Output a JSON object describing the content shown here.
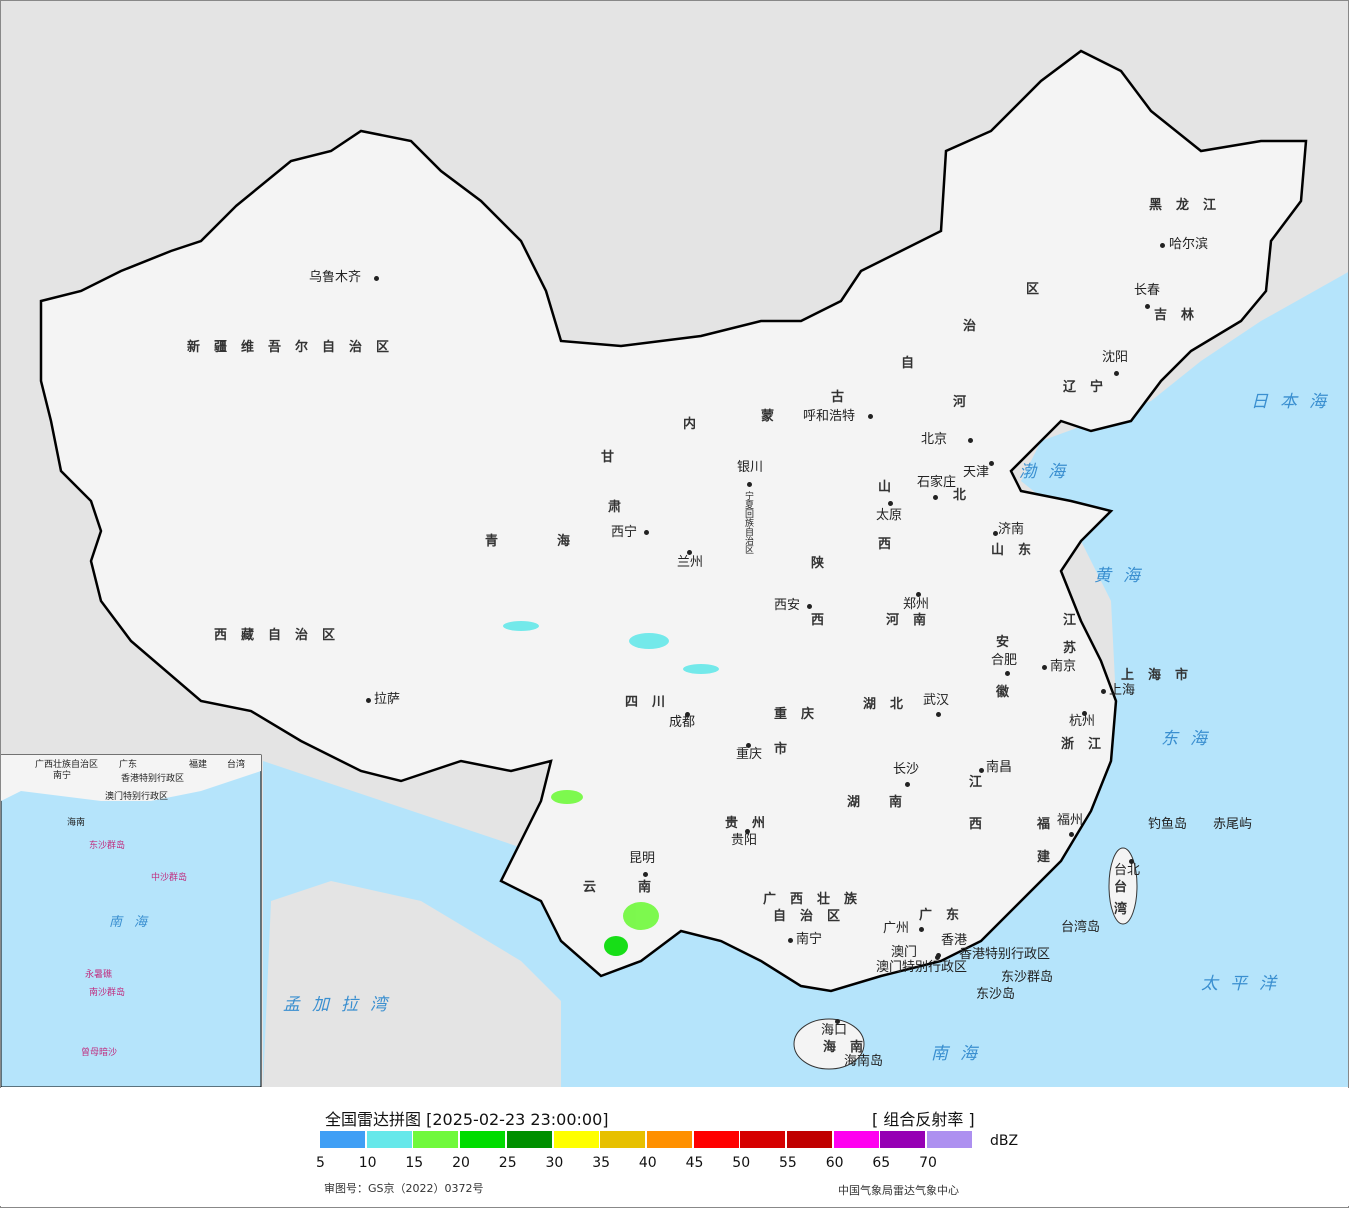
{
  "legend": {
    "title": "全国雷达拼图 [2025-02-23 23:00:00]",
    "product": "[ 组合反射率 ]",
    "unit": "dBZ",
    "ticks": [
      "5",
      "10",
      "15",
      "20",
      "25",
      "30",
      "35",
      "40",
      "45",
      "50",
      "55",
      "60",
      "65",
      "70"
    ],
    "colors": [
      "#409ff5",
      "#66e8ea",
      "#70f93c",
      "#00dc00",
      "#008f00",
      "#ffff00",
      "#e7c000",
      "#ff9000",
      "#ff0000",
      "#d60000",
      "#c00000",
      "#ff00f0",
      "#9600b4",
      "#ad90f0"
    ],
    "approval": "审图号：GS京（2022）0372号",
    "source": "中国气象局雷达气象中心"
  },
  "map": {
    "colors": {
      "land": "#f4f4f4",
      "sea": "#b5e4fb",
      "outside": "#e4e4e4",
      "border": "#000000"
    },
    "cities": [
      "乌鲁木齐",
      "拉萨",
      "西宁",
      "兰州",
      "银川",
      "呼和浩特",
      "北京",
      "天津",
      "石家庄",
      "太原",
      "济南",
      "郑州",
      "西安",
      "合肥",
      "南京",
      "上海",
      "杭州",
      "武汉",
      "成都",
      "重庆",
      "长沙",
      "南昌",
      "贵阳",
      "昆明",
      "南宁",
      "广州",
      "福州",
      "台北",
      "哈尔滨",
      "长春",
      "沈阳",
      "海口",
      "香港",
      "澳门"
    ],
    "regions": [
      "新疆维吾尔自治区",
      "西藏自治区",
      "青",
      "海",
      "甘",
      "肃",
      "内",
      "蒙",
      "古",
      "自",
      "治",
      "区",
      "黑龙江",
      "吉林",
      "辽宁",
      "河",
      "北",
      "山",
      "西",
      "山东",
      "陕",
      "西",
      "河南",
      "江",
      "苏",
      "安",
      "徽",
      "湖北",
      "四川",
      "重庆",
      "市",
      "云",
      "南",
      "贵州",
      "湖",
      "南",
      "江",
      "西",
      "浙江",
      "福",
      "建",
      "广东",
      "广西壮族",
      "自治区",
      "台",
      "湾",
      "海南",
      "上海市",
      "宁夏回族自治区"
    ],
    "places": [
      "香港特别行政区",
      "澳门特别行政区",
      "东沙群岛",
      "东沙岛",
      "钓鱼岛",
      "赤尾屿",
      "台湾岛",
      "海南岛"
    ],
    "seas": [
      "日本海",
      "渤海",
      "黄海",
      "东海",
      "太平洋",
      "南海",
      "孟加拉湾"
    ],
    "inset": [
      "广西壮族自治区",
      "广东",
      "福建",
      "台湾",
      "南宁",
      "香港特别行政区",
      "澳门特别行政区",
      "海南",
      "东沙群岛",
      "中沙群岛",
      "南海",
      "南沙群岛",
      "曾母暗沙",
      "永暑礁"
    ]
  }
}
